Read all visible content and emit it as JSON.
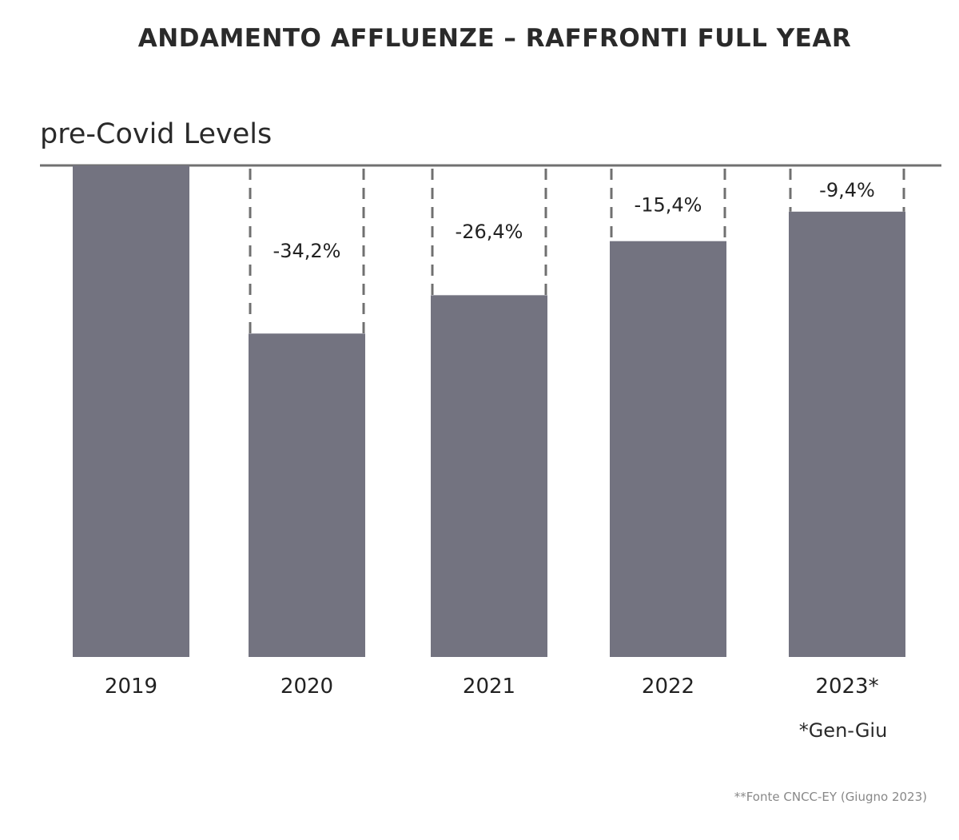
{
  "chart_data": {
    "type": "bar",
    "title": "ANDAMENTO AFFLUENZE – RAFFRONTI FULL YEAR",
    "reference_label": "pre-Covid Levels",
    "categories": [
      "2019",
      "2020",
      "2021",
      "2022",
      "2023*"
    ],
    "values": [
      100,
      65.8,
      73.6,
      84.6,
      90.6
    ],
    "data_labels": [
      "",
      "-34,2%",
      "-26,4%",
      "-15,4%",
      "-9,4%"
    ],
    "ylim": [
      0,
      100
    ],
    "grid": false,
    "bar_color": "#737380",
    "gap_style": "dashed outline up to pre-Covid level"
  },
  "footnote": "*Gen-Giu",
  "source": "**Fonte CNCC-EY (Giugno 2023)"
}
